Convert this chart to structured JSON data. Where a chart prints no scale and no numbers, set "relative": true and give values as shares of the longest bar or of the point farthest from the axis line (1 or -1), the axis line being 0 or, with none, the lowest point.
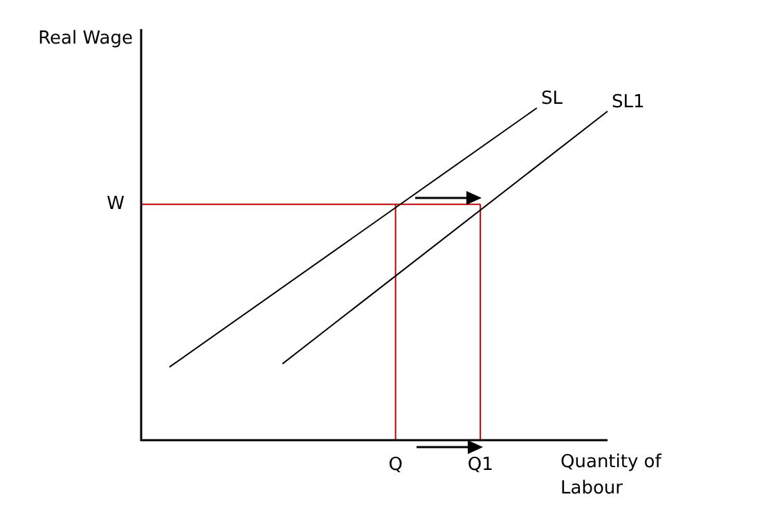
{
  "chart_data": {
    "type": "line",
    "relative": true,
    "ylabel": "Real Wage",
    "xlabel": "Quantity of Labour",
    "categories": [
      null,
      null,
      null,
      null,
      null,
      null,
      null,
      null,
      null,
      null,
      null,
      null,
      null,
      null,
      null,
      null,
      null,
      null,
      "Q",
      null,
      null,
      null,
      null,
      null,
      "Q1",
      null,
      null,
      null,
      null,
      null,
      null,
      null,
      null,
      null
    ],
    "series": [
      {
        "name": "SL",
        "color": "#000000",
        "values": [
          null,
          null,
          0.22,
          null,
          null,
          null,
          null,
          null,
          null,
          null,
          null,
          null,
          null,
          null,
          null,
          null,
          null,
          null,
          null,
          null,
          null,
          null,
          null,
          null,
          null,
          null,
          null,
          null,
          1,
          null,
          null,
          null,
          null,
          null
        ]
      },
      {
        "name": "SL1",
        "color": "#000000",
        "values": [
          null,
          null,
          null,
          null,
          null,
          null,
          null,
          null,
          null,
          null,
          0.23,
          null,
          null,
          null,
          null,
          null,
          null,
          null,
          null,
          null,
          null,
          null,
          null,
          null,
          null,
          null,
          null,
          null,
          null,
          null,
          null,
          null,
          null,
          0.99
        ]
      },
      {
        "name": "W",
        "color": "#c00000",
        "values": [
          0.71,
          null,
          null,
          null,
          null,
          null,
          null,
          null,
          null,
          null,
          null,
          null,
          null,
          null,
          null,
          null,
          null,
          null,
          null,
          null,
          null,
          null,
          null,
          null,
          0.71,
          null,
          null,
          null,
          null,
          null,
          null,
          null,
          null,
          null
        ]
      },
      {
        "color": "#c00000",
        "x": [
          "Q",
          "Q"
        ],
        "values": [
          0,
          0.71
        ]
      },
      {
        "color": "#c00000",
        "x": [
          "Q1",
          "Q1"
        ],
        "values": [
          0,
          0.71
        ]
      }
    ],
    "legend": false,
    "marker": "none",
    "line_style": "solid"
  }
}
